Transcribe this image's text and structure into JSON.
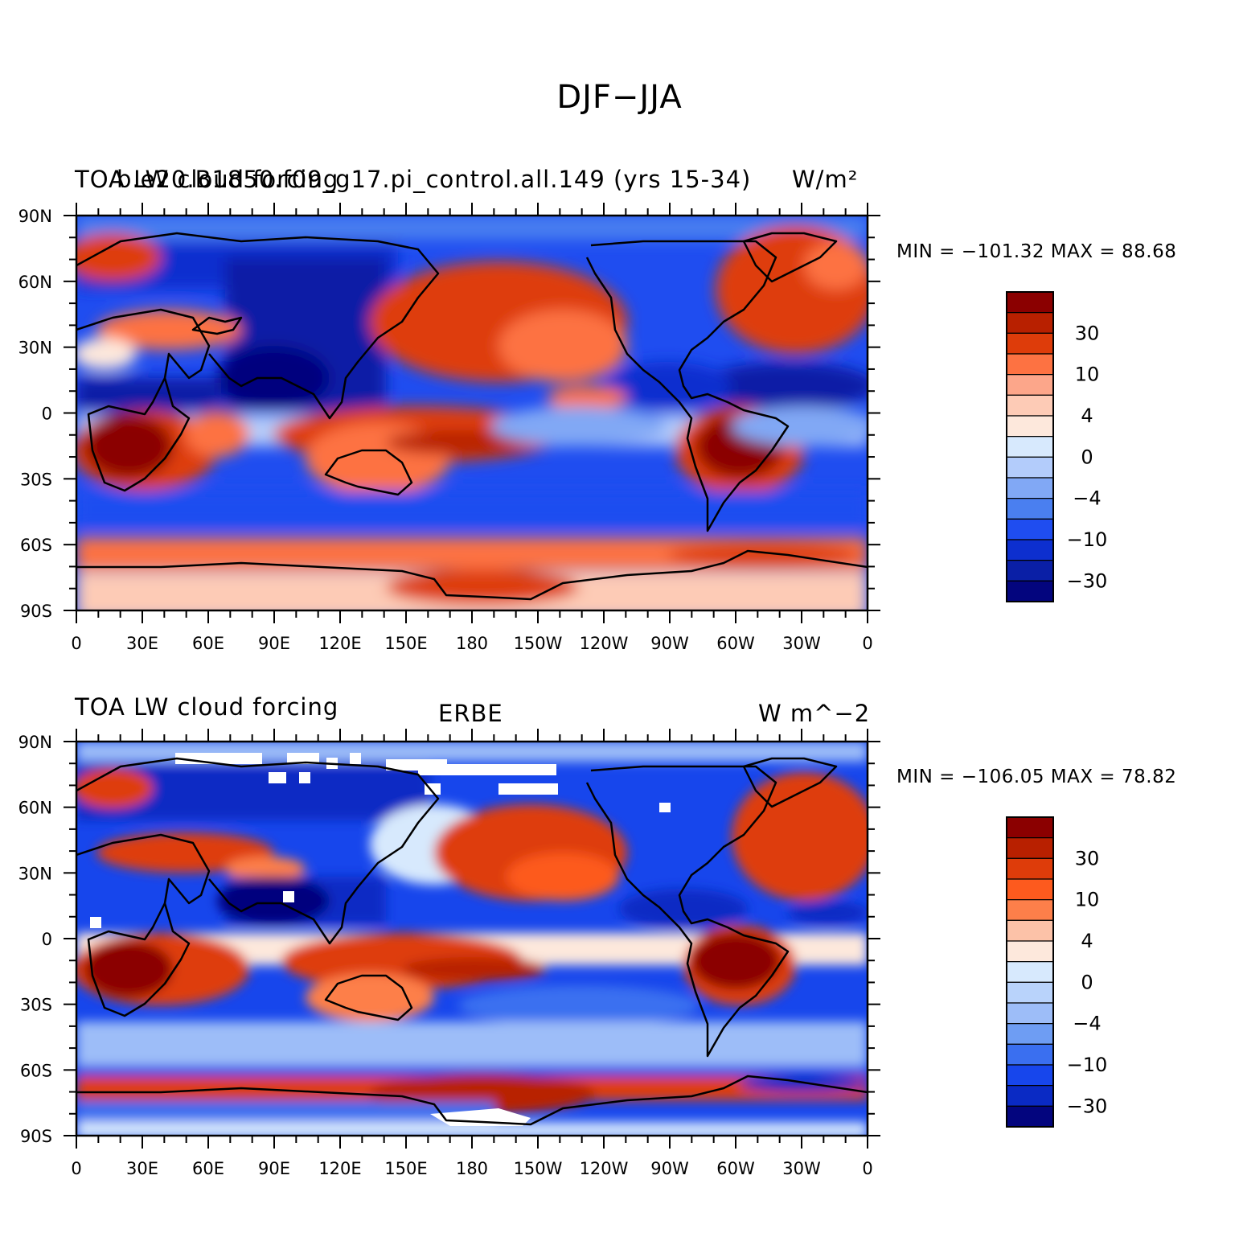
{
  "title": "DJF−JJA",
  "chart_data": [
    {
      "type": "heatmap",
      "left_title": "TOA LW cloud forcing",
      "center_title": "b.e20.B1850.f09_g17.pi_control.all.149 (yrs 15-34)",
      "units": "W/m²",
      "stats": {
        "min": -101.32,
        "max": 88.68,
        "text": "MIN = −101.32 MAX =   88.68"
      },
      "colorbar": {
        "labels": [
          "30",
          "10",
          "4",
          "0",
          "−4",
          "−10",
          "−30"
        ],
        "colors": [
          "#8b0000",
          "#b82000",
          "#de3c0a",
          "#fd7242",
          "#fca68a",
          "#fdcbb6",
          "#fde8dc",
          "#d7e9fd",
          "#b3ccfb",
          "#81a8f5",
          "#4a7ff0",
          "#1f4df0",
          "#0d2fcf",
          "#0a1fa6",
          "#03057e"
        ]
      },
      "lat_labels": [
        "90N",
        "60N",
        "30N",
        "0",
        "30S",
        "60S",
        "90S"
      ],
      "lon_labels": [
        "0",
        "30E",
        "60E",
        "90E",
        "120E",
        "150E",
        "180",
        "150W",
        "120W",
        "90W",
        "60W",
        "30W",
        "0"
      ]
    },
    {
      "type": "heatmap",
      "left_title": "TOA LW cloud forcing",
      "center_title": "ERBE",
      "units": "W m^−2",
      "stats": {
        "min": -106.05,
        "max": 78.82,
        "text": "MIN = −106.05 MAX =   78.82"
      },
      "colorbar": {
        "labels": [
          "30",
          "10",
          "4",
          "0",
          "−4",
          "−10",
          "−30"
        ],
        "colors": [
          "#8b0000",
          "#b82000",
          "#de3c0a",
          "#fd5a1e",
          "#fd7f4a",
          "#fcc2a8",
          "#fde8dc",
          "#d7e9fd",
          "#b9d3fb",
          "#9dbdf8",
          "#6e9df3",
          "#3a6ff0",
          "#1746ec",
          "#0a2ac4",
          "#03057e"
        ]
      },
      "lat_labels": [
        "90N",
        "60N",
        "30N",
        "0",
        "30S",
        "60S",
        "90S"
      ],
      "lon_labels": [
        "0",
        "30E",
        "60E",
        "90E",
        "120E",
        "150E",
        "180",
        "150W",
        "120W",
        "90W",
        "60W",
        "30W",
        "0"
      ]
    }
  ]
}
